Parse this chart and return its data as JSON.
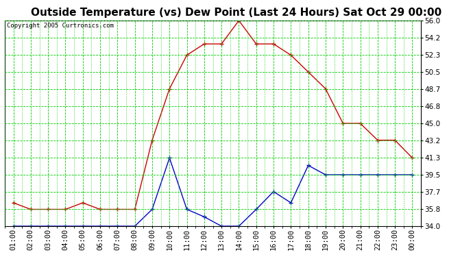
{
  "title": "Outside Temperature (vs) Dew Point (Last 24 Hours) Sat Oct 29 00:00",
  "copyright": "Copyright 2005 Curtronics.com",
  "x_labels": [
    "01:00",
    "02:00",
    "03:00",
    "04:00",
    "05:00",
    "06:00",
    "07:00",
    "08:00",
    "09:00",
    "10:00",
    "11:00",
    "12:00",
    "13:00",
    "14:00",
    "15:00",
    "16:00",
    "17:00",
    "18:00",
    "19:00",
    "20:00",
    "21:00",
    "22:00",
    "23:00",
    "00:00"
  ],
  "temp_data": [
    36.5,
    35.8,
    35.8,
    35.8,
    36.5,
    35.8,
    35.8,
    35.8,
    43.2,
    48.7,
    52.3,
    53.5,
    53.5,
    56.0,
    53.5,
    53.5,
    52.3,
    50.5,
    48.7,
    45.0,
    45.0,
    43.2,
    43.2,
    41.3
  ],
  "dew_data": [
    34.0,
    34.0,
    34.0,
    34.0,
    34.0,
    34.0,
    34.0,
    34.0,
    35.8,
    41.3,
    35.8,
    35.0,
    34.0,
    34.0,
    35.8,
    37.7,
    36.5,
    40.5,
    39.5,
    39.5,
    39.5,
    39.5,
    39.5,
    39.5
  ],
  "temp_color": "#cc0000",
  "dew_color": "#0000cc",
  "bg_color": "#ffffff",
  "plot_bg": "#ffffff",
  "grid_color": "#00cc00",
  "yticks": [
    34.0,
    35.8,
    37.7,
    39.5,
    41.3,
    43.2,
    45.0,
    46.8,
    48.7,
    50.5,
    52.3,
    54.2,
    56.0
  ],
  "ymin": 34.0,
  "ymax": 56.0,
  "title_fontsize": 11,
  "tick_fontsize": 7.5
}
